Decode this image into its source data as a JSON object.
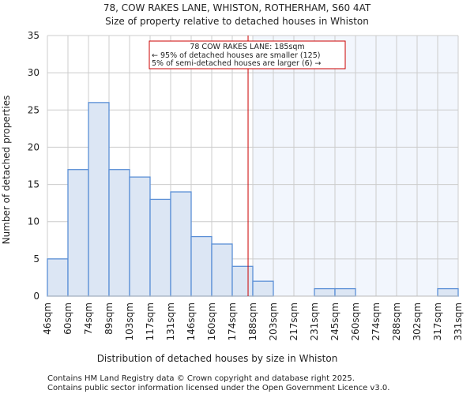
{
  "chart_data": {
    "type": "bar",
    "title": "78, COW RAKES LANE, WHISTON, ROTHERHAM, S60 4AT",
    "subtitle": "Size of property relative to detached houses in Whiston",
    "xlabel": "Distribution of detached houses by size in Whiston",
    "ylabel": "Number of detached properties",
    "ylim": [
      0,
      35
    ],
    "yticks": [
      0,
      5,
      10,
      15,
      20,
      25,
      30,
      35
    ],
    "tick_labels": [
      "46sqm",
      "60sqm",
      "74sqm",
      "89sqm",
      "103sqm",
      "117sqm",
      "131sqm",
      "146sqm",
      "160sqm",
      "174sqm",
      "188sqm",
      "203sqm",
      "217sqm",
      "231sqm",
      "245sqm",
      "260sqm",
      "274sqm",
      "288sqm",
      "302sqm",
      "317sqm",
      "331sqm"
    ],
    "values": [
      5,
      17,
      26,
      17,
      16,
      13,
      14,
      8,
      7,
      4,
      2,
      0,
      0,
      1,
      1,
      0,
      0,
      0,
      0,
      1
    ],
    "grid": true,
    "marker": {
      "value_sqm": 185,
      "bin_position": 9.77,
      "color": "#cc0000"
    },
    "highlight_from_bin": 10,
    "annotation": [
      "78 COW RAKES LANE: 185sqm",
      "← 95% of detached houses are smaller (125)",
      "5% of semi-detached houses are larger (6) →"
    ],
    "colors": {
      "bar_fill": "#dce6f4",
      "bar_stroke": "#5b8fd6",
      "highlight_bg": "#f2f6fd",
      "grid": "#cccccc"
    }
  },
  "footer": [
    "Contains HM Land Registry data © Crown copyright and database right 2025.",
    "Contains public sector information licensed under the Open Government Licence v3.0."
  ]
}
